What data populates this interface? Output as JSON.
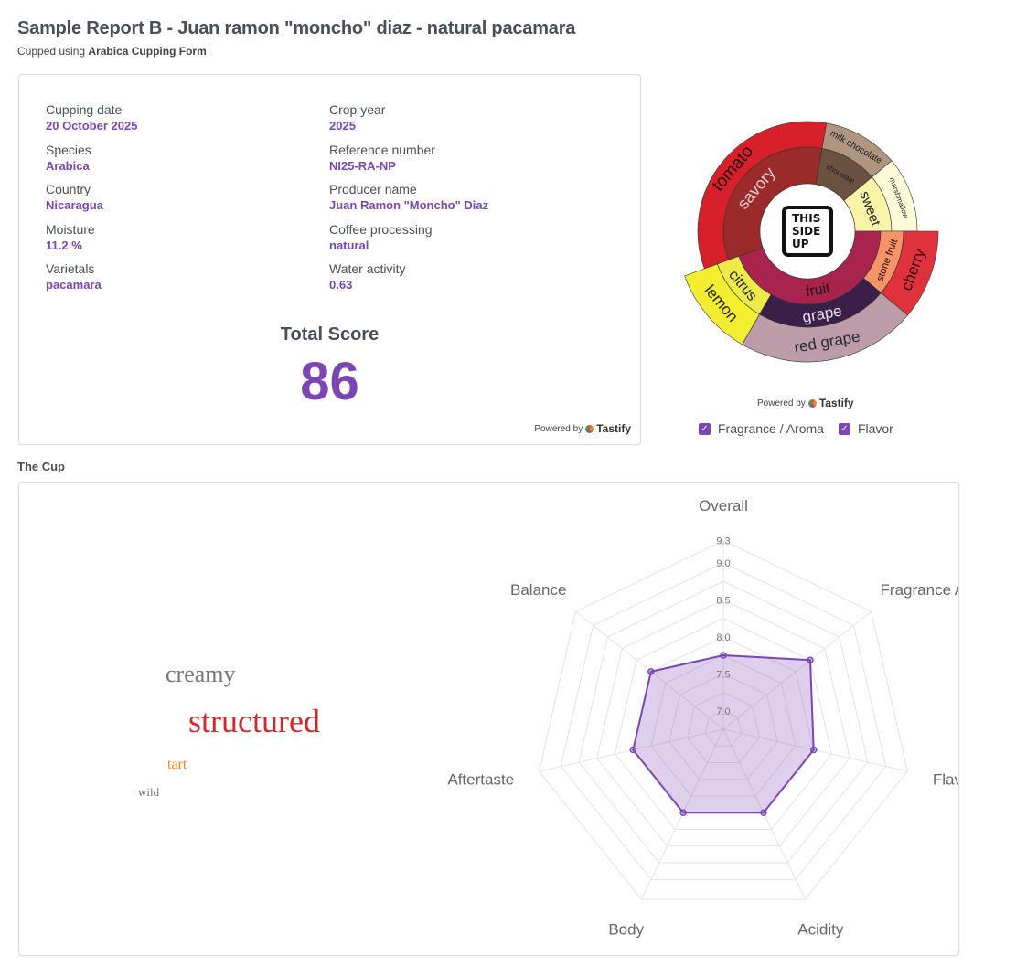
{
  "header": {
    "title": "Sample Report B - Juan ramon \"moncho\" diaz - natural pacamara",
    "subtitle_prefix": "Cupped using",
    "subtitle_form": "Arabica Cupping Form"
  },
  "info": {
    "fields": [
      {
        "label": "Cupping date",
        "value": "20 October 2025"
      },
      {
        "label": "Crop year",
        "value": "2025"
      },
      {
        "label": "Species",
        "value": "Arabica"
      },
      {
        "label": "Reference number",
        "value": "NI25-RA-NP"
      },
      {
        "label": "Country",
        "value": "Nicaragua"
      },
      {
        "label": "Producer name",
        "value": "Juan Ramon \"Moncho\" Diaz"
      },
      {
        "label": "Moisture",
        "value": "11.2 %"
      },
      {
        "label": "Coffee processing",
        "value": "natural"
      },
      {
        "label": "Varietals",
        "value": "pacamara"
      },
      {
        "label": "Water activity",
        "value": "0.63"
      }
    ],
    "total_label": "Total Score",
    "total_value": "86",
    "powered_by": "Powered by",
    "brand": "Tastify"
  },
  "flavor_wheel": {
    "logo_lines": [
      "THIS",
      "SIDE",
      "UP"
    ],
    "powered_by": "Powered by",
    "brand": "Tastify",
    "segments": [
      {
        "label": "savory",
        "weight": 12,
        "color": "#9b2a2a",
        "text": "#f0d0d0",
        "children": [
          {
            "label": "tomato",
            "color": "#d8202a",
            "text": "#2a0a0a"
          }
        ]
      },
      {
        "label": "chocolate",
        "weight": 4,
        "color": "#6b5240",
        "text": "#1a1a1a",
        "small": true,
        "children": [
          {
            "label": "milk chocolate",
            "color": "#b09580",
            "text": "#1a1a1a"
          }
        ]
      },
      {
        "label": "sweet",
        "weight": 4,
        "color": "#f8f4a8",
        "text": "#222",
        "children": [
          {
            "label": "marshmallow",
            "color": "#fdfbd8",
            "text": "#222",
            "small": true
          }
        ]
      },
      {
        "label": "fruit",
        "weight": 16,
        "color": "#a8244e",
        "text": "#2a0a14",
        "children": [
          {
            "label": "stone fruit",
            "weight": 4,
            "color": "#f59466",
            "text": "#2a0a0a",
            "children": [
              {
                "label": "cherry",
                "color": "#e0323c",
                "text": "#2a0a0a"
              }
            ]
          },
          {
            "label": "grape",
            "weight": 8,
            "color": "#3c1f48",
            "text": "#e6e0ea",
            "children": [
              {
                "label": "red grape",
                "color": "#bb9ca8",
                "text": "#2a2a2a"
              }
            ]
          },
          {
            "label": "citrus",
            "weight": 4,
            "color": "#eeea48",
            "text": "#222",
            "children": [
              {
                "label": "lemon",
                "color": "#f4ee30",
                "text": "#222"
              }
            ]
          }
        ]
      }
    ],
    "legend": [
      {
        "label": "Fragrance / Aroma",
        "checked": true
      },
      {
        "label": "Flavor",
        "checked": true
      }
    ]
  },
  "cup": {
    "title": "The Cup",
    "words": [
      {
        "text": "creamy",
        "color": "#777777"
      },
      {
        "text": "structured",
        "color": "#d62728"
      },
      {
        "text": "tart",
        "color": "#ff7f0e"
      },
      {
        "text": "wild",
        "color": "#6b6b7b"
      }
    ]
  },
  "chart_data": {
    "type": "radar",
    "axes": [
      "Overall",
      "Fragrance Aroma",
      "Flavor",
      "Acidity",
      "Body",
      "Aftertaste",
      "Balance"
    ],
    "values": [
      7.75,
      8.25,
      8.0,
      8.0,
      8.0,
      8.0,
      8.0
    ],
    "ticks": [
      "7.0",
      "7.5",
      "8.0",
      "8.5",
      "9.0",
      "9.3"
    ],
    "range": [
      6.75,
      9.3
    ],
    "color": "#7b45b5",
    "fill": "rgba(123,69,181,0.25)",
    "grid": true
  }
}
